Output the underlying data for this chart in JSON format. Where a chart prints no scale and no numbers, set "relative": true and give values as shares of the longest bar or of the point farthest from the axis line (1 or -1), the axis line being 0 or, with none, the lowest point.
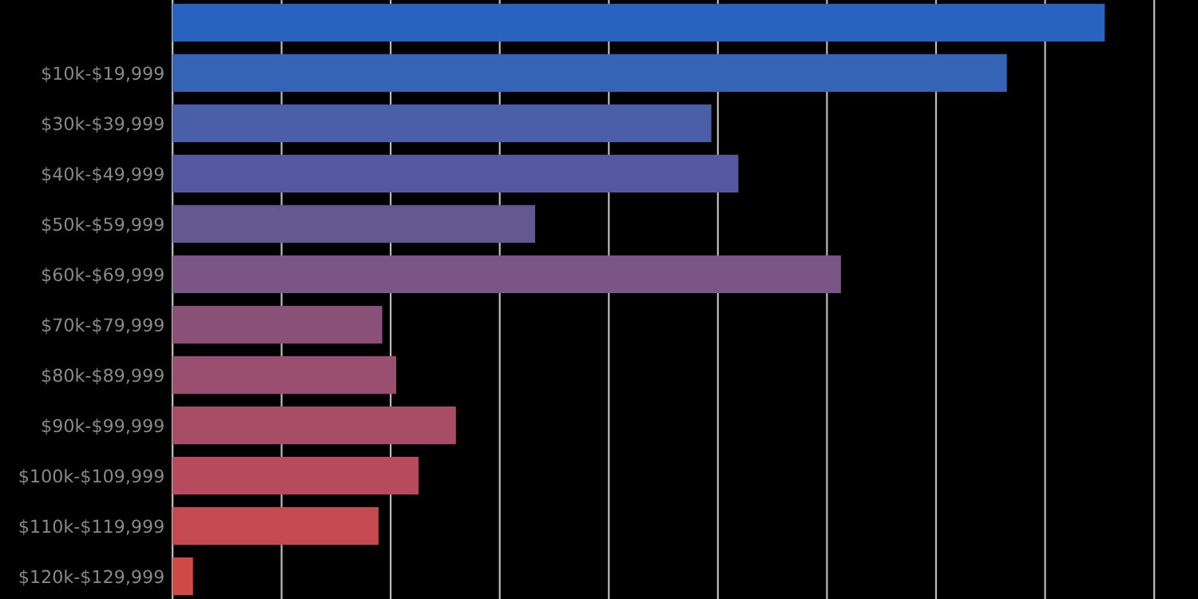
{
  "chart_data": {
    "type": "bar",
    "orientation": "horizontal",
    "relative": true,
    "grid": "x",
    "tick_labels": "y",
    "categories": [
      null,
      "$10k-$19,999",
      "$30k-$39,999",
      "$40k-$49,999",
      "$50k-$59,999",
      "$60k-$69,999",
      "$70k-$79,999",
      "$80k-$89,999",
      "$90k-$99,999",
      "$100k-$109,999",
      "$110k-$119,999",
      "$120k-$129,999"
    ],
    "values": [
      1,
      0.895,
      0.578,
      0.607,
      0.389,
      0.717,
      0.225,
      0.24,
      0.304,
      0.264,
      0.221,
      0.022
    ],
    "colors": [
      "#2a63bf",
      "#3563b5",
      "#4a5fa8",
      "#55589f",
      "#645890",
      "#7a5585",
      "#8a5078",
      "#9a4f70",
      "#a84d66",
      "#b84a5d",
      "#c44a50",
      "#d04a48"
    ]
  }
}
